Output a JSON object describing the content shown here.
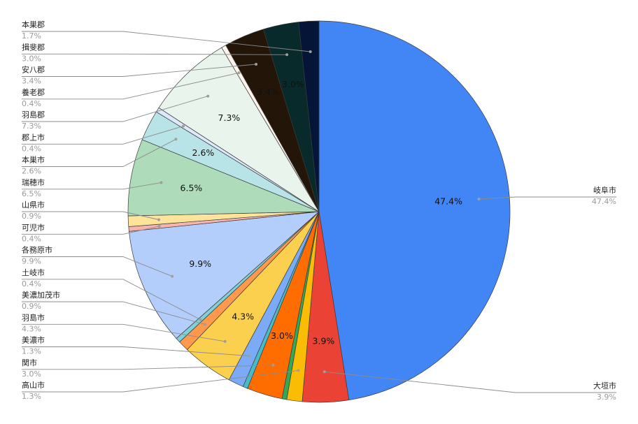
{
  "chart_data": {
    "type": "pie",
    "title": "",
    "start_angle_deg": 0,
    "direction": "clockwise",
    "slices": [
      {
        "label": "岐阜市",
        "value": 47.4,
        "value_label": "47.4%",
        "color": "#4285f4",
        "inner_label": "47.4%",
        "side": "right"
      },
      {
        "label": "大垣市",
        "value": 3.9,
        "value_label": "3.9%",
        "color": "#ea4335",
        "inner_label": "3.9%",
        "side": "right"
      },
      {
        "label": "高山市",
        "value": 1.3,
        "value_label": "1.3%",
        "color": "#fbbc04",
        "inner_label": "",
        "side": "left"
      },
      {
        "label": "関市",
        "value": 0.4,
        "value_label": "",
        "color": "#34a853",
        "inner_label": "",
        "side": "none"
      },
      {
        "label": "関市",
        "value": 3.0,
        "value_label": "3.0%",
        "color": "#ff6d01",
        "inner_label": "3.0%",
        "side": "left"
      },
      {
        "label": "美濃市",
        "value": 0.4,
        "value_label": "",
        "color": "#46bdc6",
        "inner_label": "",
        "side": "none"
      },
      {
        "label": "美濃市",
        "value": 1.3,
        "value_label": "1.3%",
        "color": "#7baaf7",
        "inner_label": "",
        "side": "left"
      },
      {
        "label": "羽島市",
        "value": 4.3,
        "value_label": "4.3%",
        "color": "#fcd04f",
        "inner_label": "4.3%",
        "side": "left"
      },
      {
        "label": "美濃加茂市",
        "value": 0.9,
        "value_label": "0.9%",
        "color": "#ff994d",
        "inner_label": "",
        "side": "left"
      },
      {
        "label": "土岐市",
        "value": 0.4,
        "value_label": "0.4%",
        "color": "#7ed1d7",
        "inner_label": "",
        "side": "left"
      },
      {
        "label": "各務原市",
        "value": 9.9,
        "value_label": "9.9%",
        "color": "#b3cefb",
        "inner_label": "9.9%",
        "side": "left"
      },
      {
        "label": "可児市",
        "value": 0.4,
        "value_label": "0.4%",
        "color": "#f7b4ae",
        "inner_label": "",
        "side": "left"
      },
      {
        "label": "山県市",
        "value": 0.9,
        "value_label": "0.9%",
        "color": "#fde49b",
        "inner_label": "",
        "side": "left"
      },
      {
        "label": "瑞穂市",
        "value": 6.5,
        "value_label": "6.5%",
        "color": "#aedcba",
        "inner_label": "6.5%",
        "side": "left"
      },
      {
        "label": "本巣市",
        "value": 2.6,
        "value_label": "2.6%",
        "color": "#b8e4e8",
        "inner_label": "2.6%",
        "side": "left"
      },
      {
        "label": "郡上市",
        "value": 0.4,
        "value_label": "0.4%",
        "color": "#dde9fb",
        "inner_label": "",
        "side": "left"
      },
      {
        "label": "羽島郡",
        "value": 7.3,
        "value_label": "7.3%",
        "color": "#e9f5ec",
        "inner_label": "7.3%",
        "side": "left"
      },
      {
        "label": "養老郡",
        "value": 0.4,
        "value_label": "0.4%",
        "color": "#fdf2ec",
        "inner_label": "",
        "side": "left"
      },
      {
        "label": "安八郡",
        "value": 3.4,
        "value_label": "3.4%",
        "color": "#231609",
        "inner_label": "3.4%",
        "side": "left"
      },
      {
        "label": "揖斐郡",
        "value": 3.0,
        "value_label": "3.0%",
        "color": "#082a2a",
        "inner_label": "3.0%",
        "side": "left"
      },
      {
        "label": "本巣郡",
        "value": 1.7,
        "value_label": "1.7%",
        "color": "#041537",
        "inner_label": "",
        "side": "left"
      }
    ]
  }
}
